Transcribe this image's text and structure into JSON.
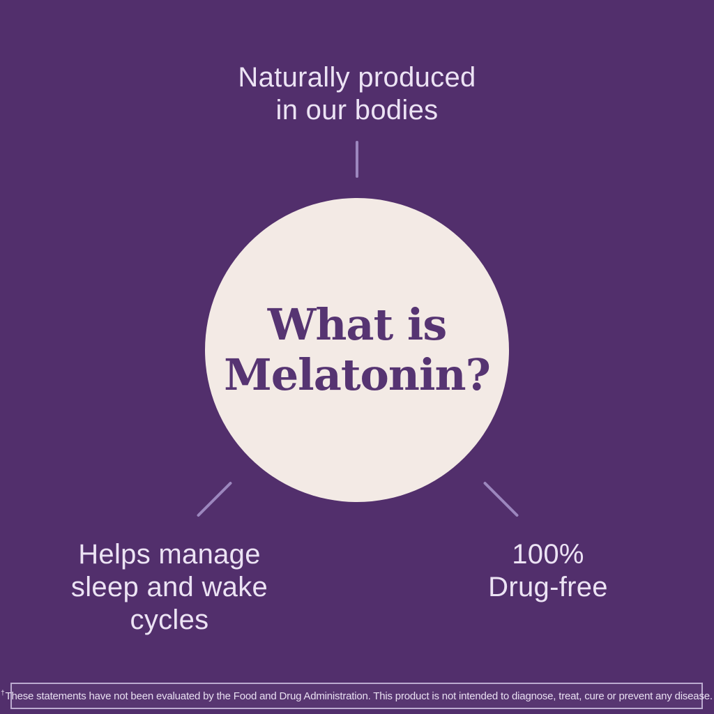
{
  "meta": {
    "description": "What is Melatonin infographic card"
  },
  "colors": {
    "background": "#522f6c",
    "circle_fill": "#f3eae5",
    "title_text": "#563472",
    "callout_text": "#ece3f4",
    "connector_line": "#9c87be",
    "footer_border": "#bcabd0",
    "footer_text": "#e9e0f2"
  },
  "center_circle": {
    "title_line1": "What is",
    "title_line2": "Melatonin?"
  },
  "callouts": {
    "top": {
      "line1": "Naturally produced",
      "line2": "in our bodies"
    },
    "bottom_left": {
      "line1": "Helps manage",
      "line2": "sleep and wake",
      "line3": "cycles"
    },
    "bottom_right": {
      "line1": "100%",
      "line2": "Drug-free"
    }
  },
  "footer": {
    "dagger": "†",
    "disclaimer": "These statements have not been evaluated by the Food and Drug Administration. This product is not intended to diagnose, treat, cure or prevent any disease."
  }
}
